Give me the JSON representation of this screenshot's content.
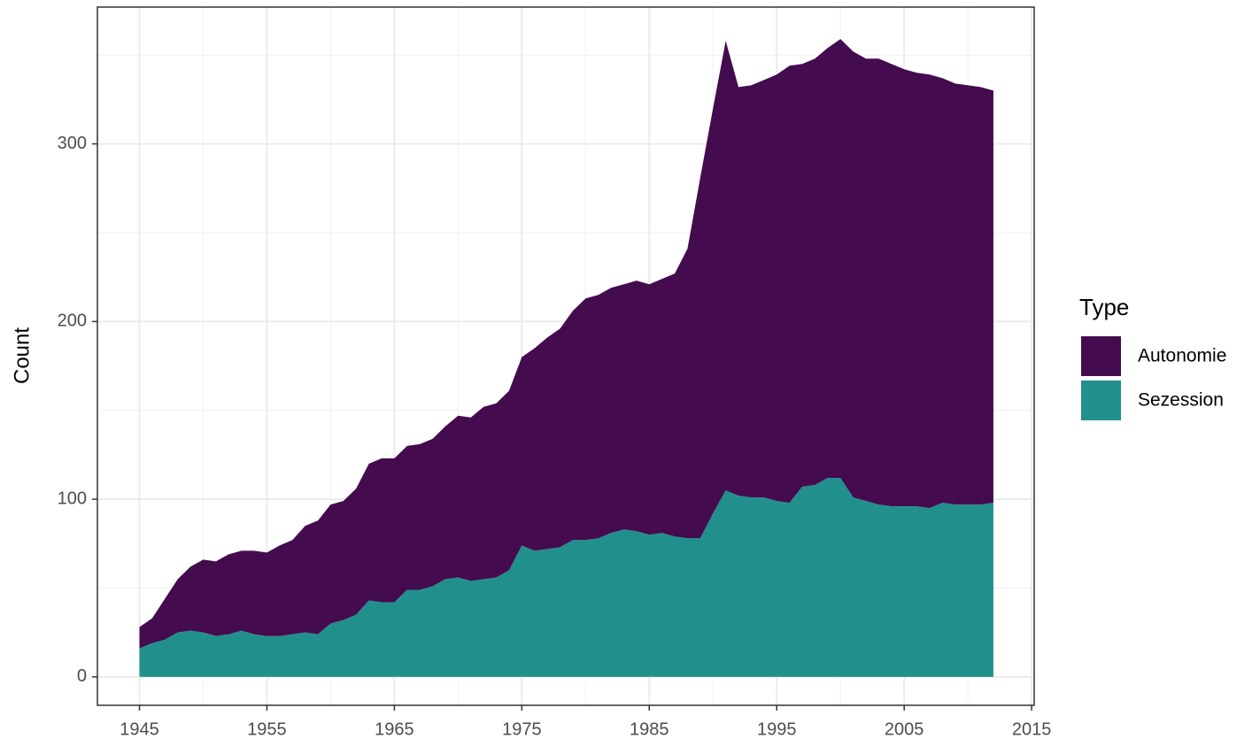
{
  "chart_data": {
    "type": "area",
    "stacked": true,
    "y_label": "Count",
    "legend_title": "Type",
    "legend_position": "right",
    "grid": true,
    "x": [
      1945,
      1946,
      1947,
      1948,
      1949,
      1950,
      1951,
      1952,
      1953,
      1954,
      1955,
      1956,
      1957,
      1958,
      1959,
      1960,
      1961,
      1962,
      1963,
      1964,
      1965,
      1966,
      1967,
      1968,
      1969,
      1970,
      1971,
      1972,
      1973,
      1974,
      1975,
      1976,
      1977,
      1978,
      1979,
      1980,
      1981,
      1982,
      1983,
      1984,
      1985,
      1986,
      1987,
      1988,
      1989,
      1990,
      1991,
      1992,
      1993,
      1994,
      1995,
      1996,
      1997,
      1998,
      1999,
      2000,
      2001,
      2002,
      2003,
      2004,
      2005,
      2006,
      2007,
      2008,
      2009,
      2010,
      2011,
      2012
    ],
    "series": [
      {
        "name": "Autonomie",
        "color": "#440b4f",
        "values": [
          12,
          14,
          23,
          30,
          36,
          41,
          42,
          45,
          45,
          47,
          47,
          51,
          53,
          60,
          64,
          67,
          67,
          71,
          77,
          81,
          81,
          81,
          82,
          83,
          86,
          91,
          92,
          97,
          98,
          101,
          106,
          114,
          119,
          123,
          129,
          136,
          137,
          138,
          138,
          141,
          141,
          143,
          148,
          163,
          203,
          228,
          253,
          230,
          232,
          235,
          240,
          246,
          238,
          240,
          242,
          247,
          251,
          249,
          251,
          249,
          246,
          244,
          244,
          239,
          237,
          236,
          235,
          232
        ]
      },
      {
        "name": "Sezession",
        "color": "#21908c",
        "values": [
          16,
          19,
          21,
          25,
          26,
          25,
          23,
          24,
          26,
          24,
          23,
          23,
          24,
          25,
          24,
          30,
          32,
          35,
          43,
          42,
          42,
          49,
          49,
          51,
          55,
          56,
          54,
          55,
          56,
          60,
          74,
          71,
          72,
          73,
          77,
          77,
          78,
          81,
          83,
          82,
          80,
          81,
          79,
          78,
          78,
          92,
          105,
          102,
          101,
          101,
          99,
          98,
          107,
          108,
          112,
          112,
          101,
          99,
          97,
          96,
          96,
          96,
          95,
          98,
          97,
          97,
          97,
          98
        ]
      }
    ],
    "xlim": [
      1941.7,
      2015.2
    ],
    "ylim": [
      -16,
      377
    ],
    "xticks": [
      1945,
      1955,
      1965,
      1975,
      1985,
      1995,
      2005,
      2015
    ],
    "yticks": [
      0,
      100,
      200,
      300
    ],
    "x_minor_grid": [
      1950,
      1960,
      1970,
      1980,
      1990,
      2000,
      2010
    ],
    "y_minor_grid": [
      50,
      150,
      250,
      350
    ]
  }
}
